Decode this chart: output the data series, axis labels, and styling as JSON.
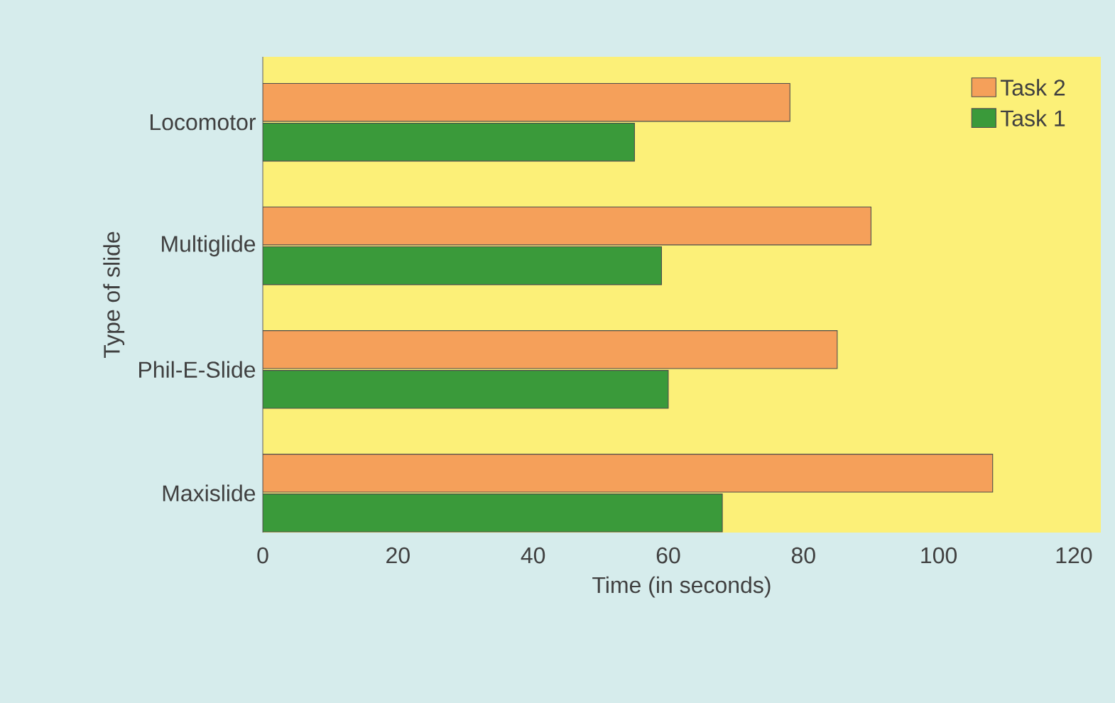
{
  "chart_data": {
    "type": "bar",
    "orientation": "horizontal",
    "xlabel": "Time (in seconds)",
    "ylabel": "Type of slide",
    "categories": [
      "Locomotor",
      "Multiglide",
      "Phil-E-Slide",
      "Maxislide"
    ],
    "series": [
      {
        "name": "Task 2",
        "color": "#f5a05a",
        "values": [
          78,
          90,
          85,
          108
        ]
      },
      {
        "name": "Task 1",
        "color": "#3a9a3a",
        "values": [
          55,
          59,
          60,
          68
        ]
      }
    ],
    "xlim": [
      0,
      124
    ],
    "xticks": [
      0,
      20,
      40,
      60,
      80,
      100,
      120
    ],
    "legend": "top right"
  }
}
